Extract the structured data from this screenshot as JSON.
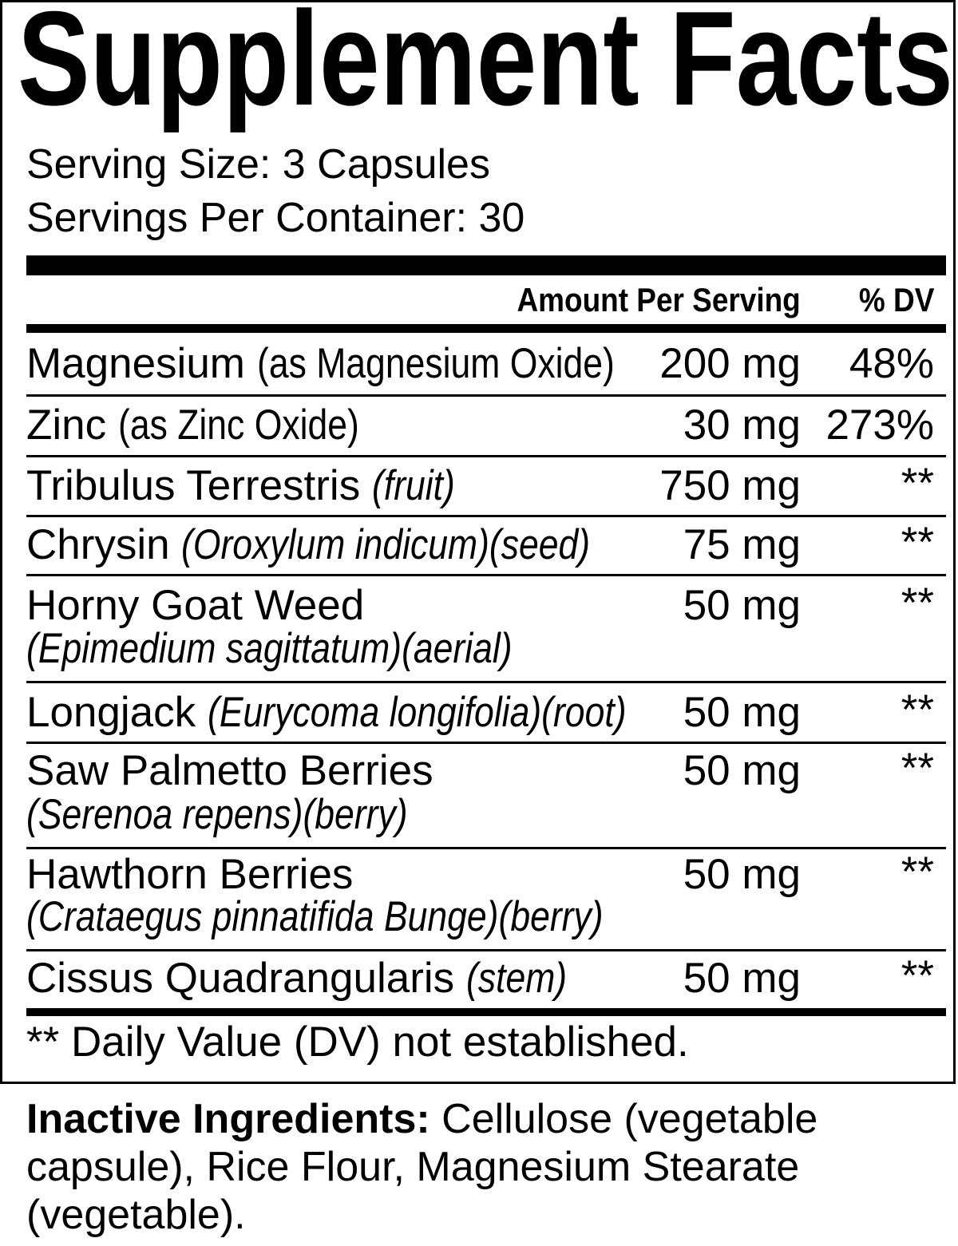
{
  "title": "Supplement Facts",
  "serving_size": "Serving Size: 3 Capsules",
  "servings_per_container": "Servings Per Container: 30",
  "header": {
    "amount": "Amount Per Serving",
    "dv": "% DV"
  },
  "rows": [
    {
      "name": "Magnesium",
      "qualifier": "(as Magnesium Oxide)",
      "amount": "200 mg",
      "dv": "48%"
    },
    {
      "name": "Zinc",
      "qualifier": "(as Zinc Oxide)",
      "amount": "30 mg",
      "dv": "273%"
    },
    {
      "name": "Tribulus Terrestris",
      "qualifier": "(fruit)",
      "amount": "750 mg",
      "dv": "**"
    },
    {
      "name": "Chrysin",
      "qualifier": "(Oroxylum indicum)(seed)",
      "amount": "75 mg",
      "dv": "**"
    },
    {
      "name": "Horny Goat Weed",
      "qualifier": "(Epimedium sagittatum)(aerial)",
      "amount": "50 mg",
      "dv": "**"
    },
    {
      "name": "Longjack",
      "qualifier": "(Eurycoma longifolia)(root)",
      "amount": "50 mg",
      "dv": "**"
    },
    {
      "name": "Saw Palmetto Berries",
      "qualifier": "(Serenoa repens)(berry)",
      "amount": "50 mg",
      "dv": "**"
    },
    {
      "name": "Hawthorn Berries",
      "qualifier": "(Crataegus pinnatifida Bunge)(berry)",
      "amount": "50 mg",
      "dv": "**"
    },
    {
      "name": "Cissus Quadrangularis",
      "qualifier": "(stem)",
      "amount": "50 mg",
      "dv": "**"
    }
  ],
  "footnote": "** Daily Value (DV) not established.",
  "inactive": {
    "label": "Inactive Ingredients:",
    "text": " Cellulose (vegetable capsule), Rice Flour, Magnesium Stearate (vegetable)."
  }
}
